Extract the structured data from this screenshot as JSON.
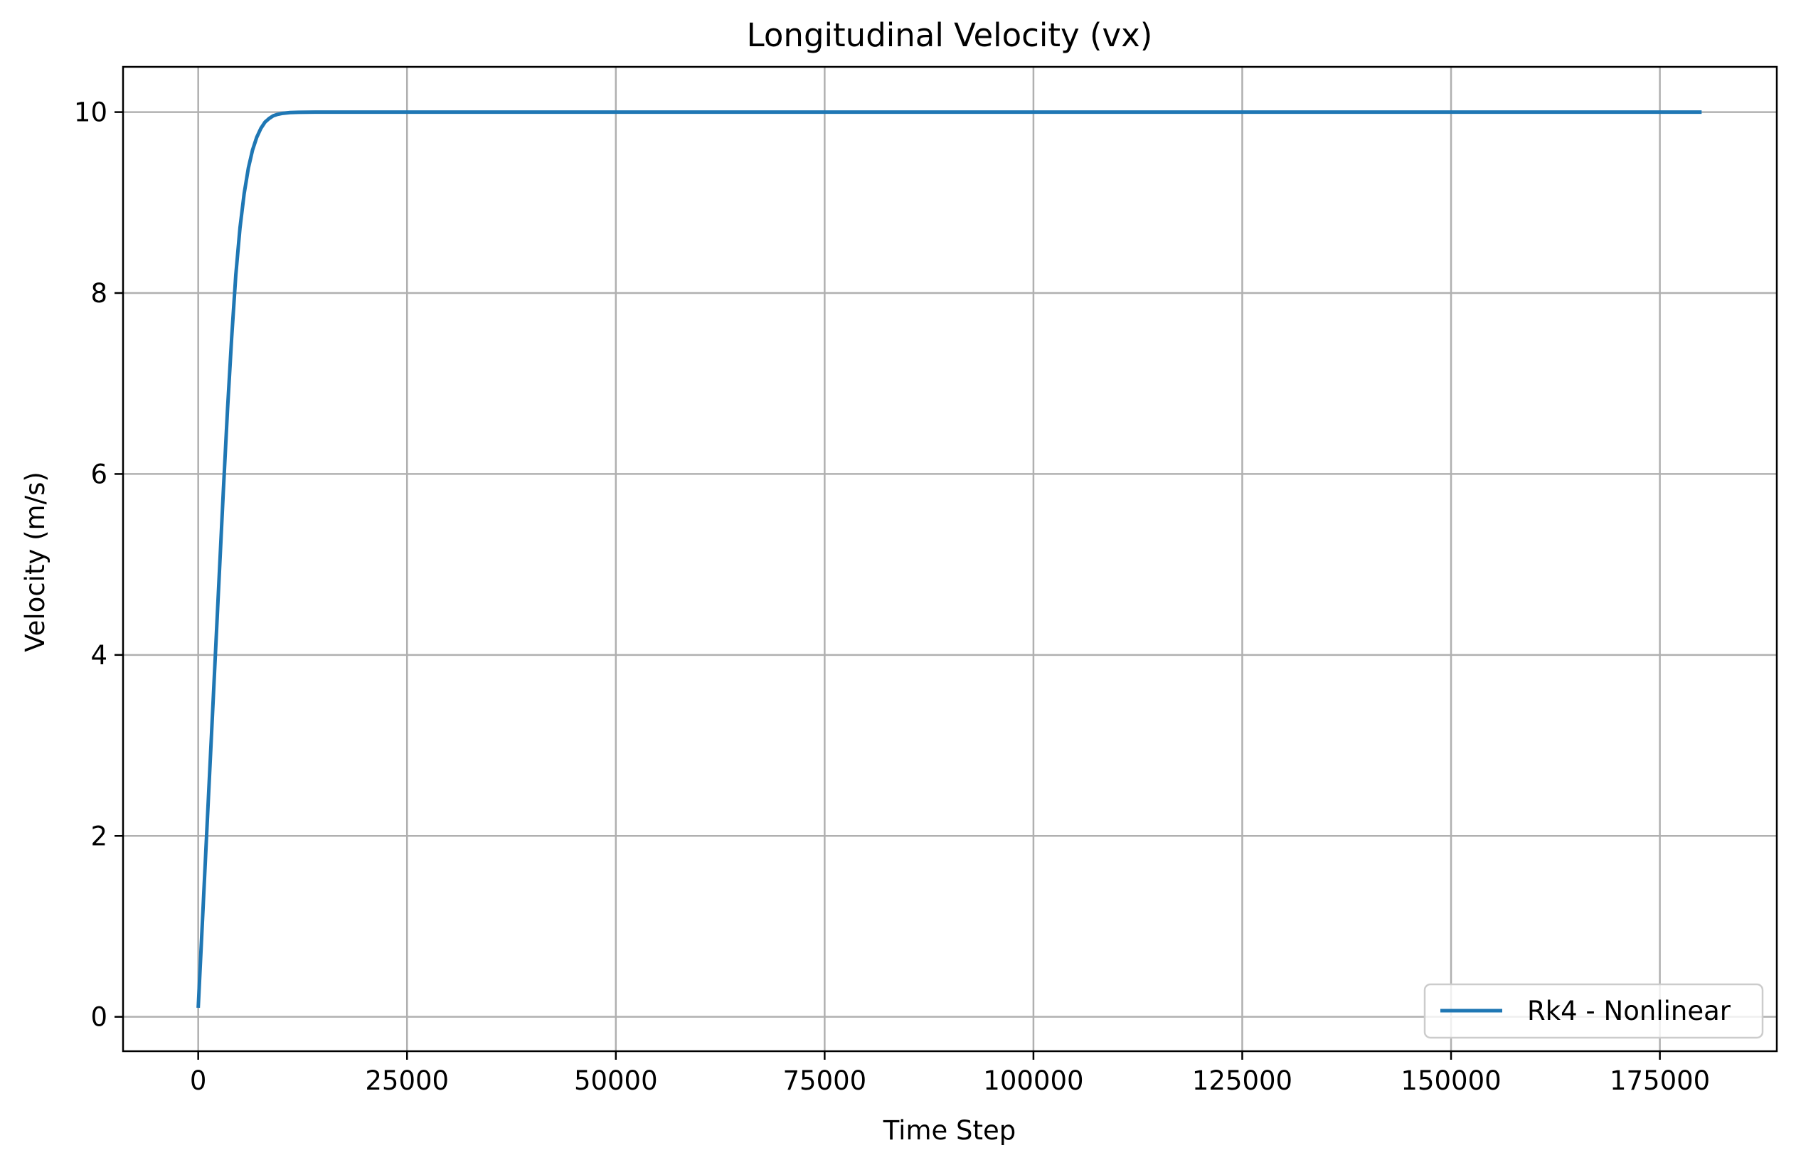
{
  "chart_data": {
    "type": "line",
    "title": "Longitudinal Velocity (vx)",
    "xlabel": "Time Step",
    "ylabel": "Velocity (m/s)",
    "xlim": [
      -9000,
      189000
    ],
    "ylim": [
      -0.38,
      10.5
    ],
    "x_ticks": [
      0,
      25000,
      50000,
      75000,
      100000,
      125000,
      150000,
      175000
    ],
    "x_tick_labels": [
      "0",
      "25000",
      "50000",
      "75000",
      "100000",
      "125000",
      "150000",
      "175000"
    ],
    "y_ticks": [
      0,
      2,
      4,
      6,
      8,
      10
    ],
    "y_tick_labels": [
      "0",
      "2",
      "4",
      "6",
      "8",
      "10"
    ],
    "grid": true,
    "legend_position": "lower right",
    "series": [
      {
        "name": "Rk4 - Nonlinear",
        "color": "#1f77b4",
        "x": [
          0,
          500,
          1000,
          1500,
          2000,
          2500,
          3000,
          3500,
          4000,
          4500,
          5000,
          5500,
          6000,
          6500,
          7000,
          7500,
          8000,
          8500,
          9000,
          9500,
          10000,
          10500,
          11000,
          12000,
          13000,
          14000,
          16000,
          20000,
          30000,
          50000,
          75000,
          100000,
          125000,
          150000,
          180000
        ],
        "y": [
          0.1,
          1.05,
          2.0,
          2.95,
          3.9,
          4.85,
          5.8,
          6.7,
          7.5,
          8.2,
          8.72,
          9.1,
          9.38,
          9.58,
          9.72,
          9.82,
          9.89,
          9.93,
          9.96,
          9.975,
          9.985,
          9.99,
          9.995,
          9.998,
          9.999,
          10.0,
          10.0,
          10.0,
          10.0,
          10.0,
          10.0,
          10.0,
          10.0,
          10.0,
          10.0
        ]
      }
    ]
  },
  "legend": {
    "entries": [
      "Rk4 - Nonlinear"
    ]
  }
}
